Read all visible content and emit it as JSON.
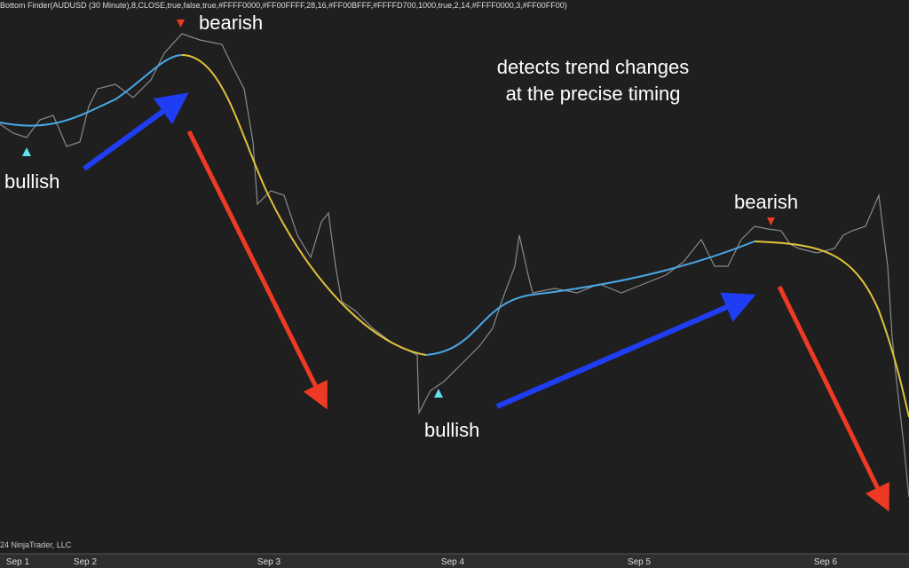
{
  "header": {
    "title": "Bottom Finder(AUDUSD (30 Minute),8,CLOSE,true,false,true,#FFFF0000,#FF00FFFF,28,16,#FF00BFFF,#FFFFD700,1000,true,2,14,#FFFF0000,3,#FF00FF00)"
  },
  "annotations": [
    "bullish",
    "bearish",
    "bullish",
    "bearish"
  ],
  "headline": [
    "detects trend changes",
    "at the precise timing"
  ],
  "x_axis": {
    "labels": [
      "Sep 1",
      "Sep 2",
      "Sep 3",
      "Sep 4",
      "Sep 5",
      "Sep 6"
    ]
  },
  "footer": "24 NinjaTrader, LLC"
}
